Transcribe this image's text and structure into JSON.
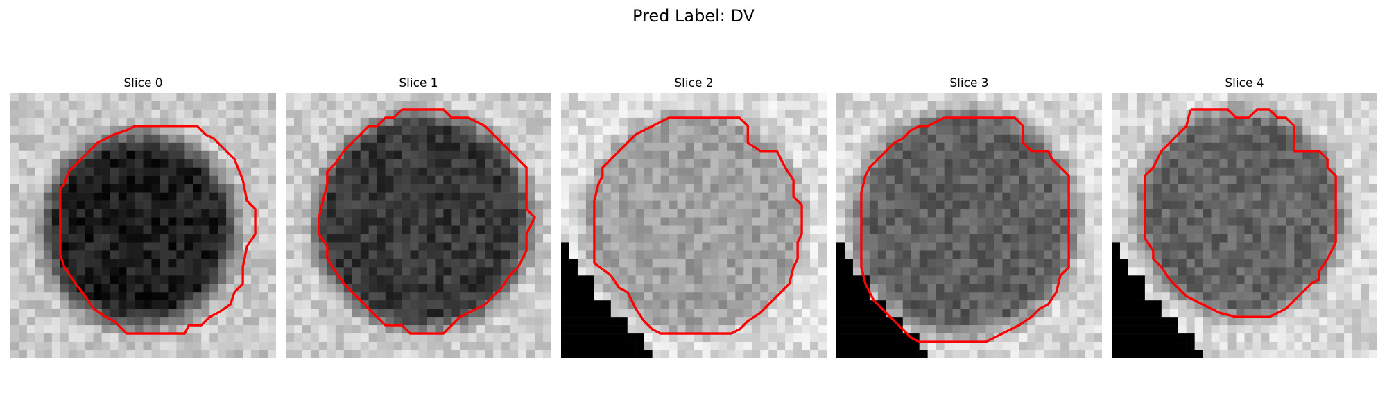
{
  "figure": {
    "title": "Pred Label: DV"
  },
  "panels": [
    {
      "title": "Slice 0",
      "lesion_tone": "dark"
    },
    {
      "title": "Slice 1",
      "lesion_tone": "dark"
    },
    {
      "title": "Slice 2",
      "lesion_tone": "mid-gray",
      "black_corner": "bottom-left"
    },
    {
      "title": "Slice 3",
      "lesion_tone": "dark-gray",
      "black_corner": "bottom-left"
    },
    {
      "title": "Slice 4",
      "lesion_tone": "dark-gray",
      "black_corner": "bottom-left"
    }
  ],
  "contour_color": "#ff0000",
  "colormap": "grayscale"
}
